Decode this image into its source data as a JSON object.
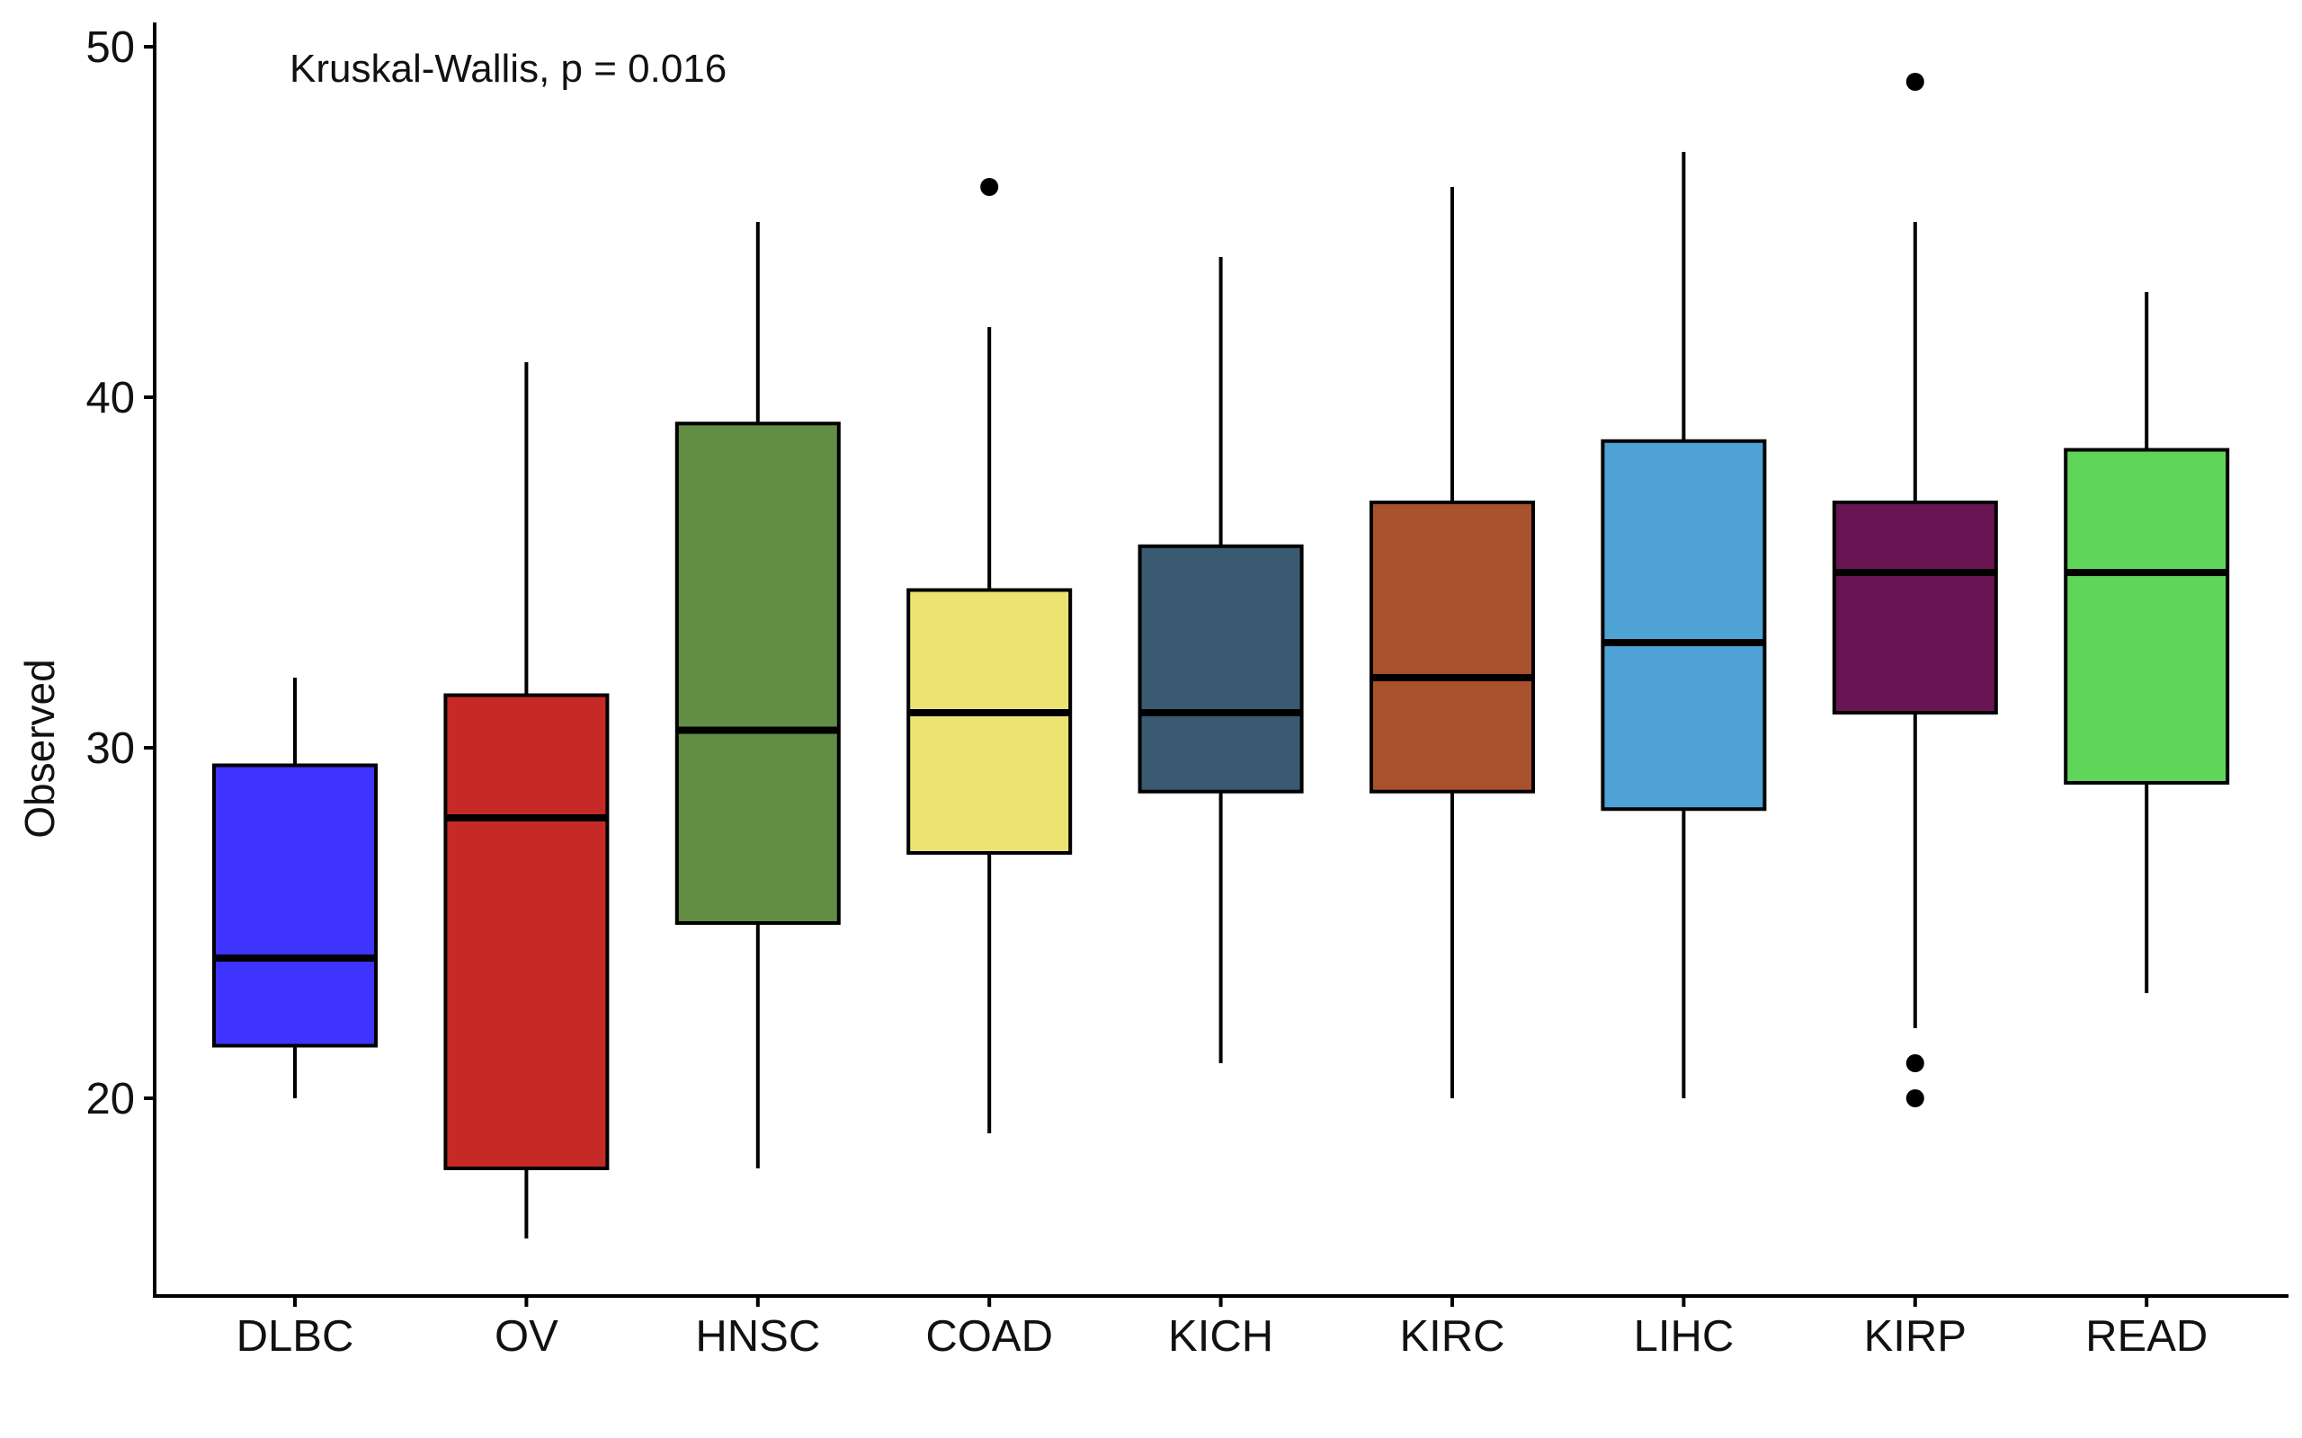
{
  "chart_data": {
    "type": "box",
    "annotation": "Kruskal-Wallis, p = 0.016",
    "ylabel": "Observed",
    "xlabel": "",
    "ylim": [
      14.5,
      50.6
    ],
    "yticks": [
      20,
      30,
      40,
      50
    ],
    "grid": false,
    "legend": "none",
    "categories": [
      "DLBC",
      "OV",
      "HNSC",
      "COAD",
      "KICH",
      "KIRC",
      "LIHC",
      "KIRP",
      "READ"
    ],
    "boxes": [
      {
        "category": "DLBC",
        "color": "#3f33fe",
        "whisker_low": 20,
        "q1": 21.5,
        "median": 24,
        "q3": 29.5,
        "whisker_high": 32,
        "outliers": []
      },
      {
        "category": "OV",
        "color": "#c52a27",
        "whisker_low": 16,
        "q1": 18,
        "median": 28,
        "q3": 31.5,
        "whisker_high": 41,
        "outliers": []
      },
      {
        "category": "HNSC",
        "color": "#638d45",
        "whisker_low": 18,
        "q1": 25,
        "median": 30.5,
        "q3": 39.25,
        "whisker_high": 45,
        "outliers": []
      },
      {
        "category": "COAD",
        "color": "#ece373",
        "whisker_low": 19,
        "q1": 27,
        "median": 31,
        "q3": 34.5,
        "whisker_high": 42,
        "outliers": [
          46
        ]
      },
      {
        "category": "KICH",
        "color": "#3a5a72",
        "whisker_low": 21,
        "q1": 28.75,
        "median": 31,
        "q3": 35.75,
        "whisker_high": 44,
        "outliers": []
      },
      {
        "category": "KIRC",
        "color": "#a9502c",
        "whisker_low": 20,
        "q1": 28.75,
        "median": 32,
        "q3": 37,
        "whisker_high": 46,
        "outliers": []
      },
      {
        "category": "LIHC",
        "color": "#4ea2d6",
        "whisker_low": 20,
        "q1": 28.25,
        "median": 33,
        "q3": 38.75,
        "whisker_high": 47,
        "outliers": []
      },
      {
        "category": "KIRP",
        "color": "#6a1553",
        "whisker_low": 22,
        "q1": 31,
        "median": 35,
        "q3": 37,
        "whisker_high": 45,
        "outliers": [
          49,
          21,
          20
        ]
      },
      {
        "category": "READ",
        "color": "#5fd65a",
        "whisker_low": 23,
        "q1": 29,
        "median": 35,
        "q3": 38.5,
        "whisker_high": 43,
        "outliers": []
      }
    ]
  }
}
